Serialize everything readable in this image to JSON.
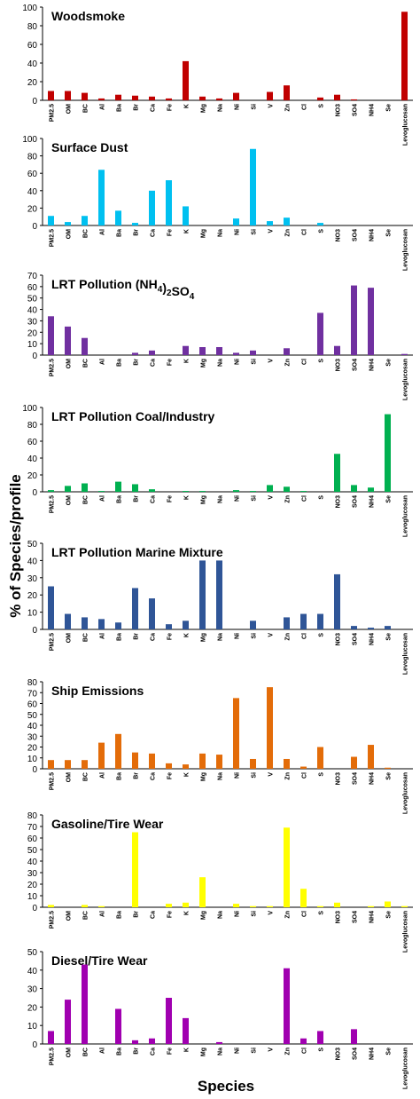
{
  "figure": {
    "ylabel": "% of Species/profile",
    "xlabel": "Species"
  },
  "chart_data": [
    {
      "type": "bar",
      "title": "Woodsmoke",
      "color": "#c00000",
      "categories": [
        "PM2.5",
        "OM",
        "BC",
        "Al",
        "Ba",
        "Br",
        "Ca",
        "Fe",
        "K",
        "Mg",
        "Na",
        "Ni",
        "Si",
        "V",
        "Zn",
        "Cl",
        "S",
        "NO3",
        "SO4",
        "NH4",
        "Se",
        "Levoglucosan"
      ],
      "values": [
        10,
        10,
        8,
        2,
        6,
        5,
        4,
        2,
        42,
        4,
        2,
        8,
        0,
        9,
        16,
        0,
        3,
        6,
        1,
        0,
        0,
        95
      ],
      "ylim": [
        0,
        100
      ],
      "yticks": [
        0,
        20,
        40,
        60,
        80,
        100
      ]
    },
    {
      "type": "bar",
      "title": "Surface Dust",
      "color": "#00c0f0",
      "categories": [
        "PM2.5",
        "OM",
        "BC",
        "Al",
        "Ba",
        "Br",
        "Ca",
        "Fe",
        "K",
        "Mg",
        "Na",
        "Ni",
        "Si",
        "V",
        "Zn",
        "Cl",
        "S",
        "NO3",
        "SO4",
        "NH4",
        "Se",
        "Levoglucosan"
      ],
      "values": [
        11,
        4,
        11,
        64,
        17,
        3,
        40,
        52,
        22,
        0,
        0,
        8,
        88,
        5,
        9,
        0,
        3,
        0,
        0,
        0,
        0,
        0
      ],
      "ylim": [
        0,
        100
      ],
      "yticks": [
        0,
        20,
        40,
        60,
        80,
        100
      ]
    },
    {
      "type": "bar",
      "title": "LRT Pollution (NH",
      "title_sub": "4",
      "title_mid": ")",
      "title_sub2": "2",
      "title_end": "SO",
      "title_sub3": "4",
      "color": "#7030a0",
      "categories": [
        "PM2.5",
        "OM",
        "BC",
        "Al",
        "Ba",
        "Br",
        "Ca",
        "Fe",
        "K",
        "Mg",
        "Na",
        "Ni",
        "Si",
        "V",
        "Zn",
        "Cl",
        "S",
        "NO3",
        "SO4",
        "NH4",
        "Se",
        "Levoglucosan"
      ],
      "values": [
        34,
        25,
        15,
        0,
        0,
        2,
        4,
        0,
        8,
        7,
        7,
        2,
        4,
        0,
        6,
        0,
        37,
        8,
        61,
        59,
        0,
        1
      ],
      "ylim": [
        0,
        70
      ],
      "yticks": [
        0,
        10,
        20,
        30,
        40,
        50,
        60,
        70
      ]
    },
    {
      "type": "bar",
      "title": "LRT Pollution Coal/Industry",
      "color": "#00b050",
      "categories": [
        "PM2.5",
        "OM",
        "BC",
        "Al",
        "Ba",
        "Br",
        "Ca",
        "Fe",
        "K",
        "Mg",
        "Na",
        "Ni",
        "Si",
        "V",
        "Zn",
        "Cl",
        "S",
        "NO3",
        "SO4",
        "NH4",
        "Se",
        "Levoglucosan"
      ],
      "values": [
        2,
        7,
        10,
        1,
        12,
        9,
        3,
        0,
        1,
        1,
        0,
        2,
        1,
        8,
        6,
        1,
        0,
        45,
        8,
        5,
        92,
        0
      ],
      "ylim": [
        0,
        100
      ],
      "yticks": [
        0,
        20,
        40,
        60,
        80,
        100
      ]
    },
    {
      "type": "bar",
      "title": "LRT Pollution Marine Mixture",
      "color": "#2f5597",
      "categories": [
        "PM2.5",
        "OM",
        "BC",
        "Al",
        "Ba",
        "Br",
        "Ca",
        "Fe",
        "K",
        "Mg",
        "Na",
        "Ni",
        "Si",
        "V",
        "Zn",
        "Cl",
        "S",
        "NO3",
        "SO4",
        "NH4",
        "Se",
        "Levoglucosan"
      ],
      "values": [
        25,
        9,
        7,
        6,
        4,
        24,
        18,
        3,
        5,
        40,
        40,
        0,
        5,
        0,
        7,
        9,
        9,
        32,
        2,
        1,
        2,
        0
      ],
      "ylim": [
        0,
        50
      ],
      "yticks": [
        0,
        10,
        20,
        30,
        40,
        50
      ]
    },
    {
      "type": "bar",
      "title": "Ship Emissions",
      "color": "#e36c09",
      "categories": [
        "PM2.5",
        "OM",
        "BC",
        "Al",
        "Ba",
        "Br",
        "Ca",
        "Fe",
        "K",
        "Mg",
        "Na",
        "Ni",
        "Si",
        "V",
        "Zn",
        "Cl",
        "S",
        "NO3",
        "SO4",
        "NH4",
        "Se",
        "Levoglucosan"
      ],
      "values": [
        8,
        8,
        8,
        24,
        32,
        15,
        14,
        5,
        4,
        14,
        13,
        65,
        9,
        75,
        9,
        2,
        20,
        0,
        11,
        22,
        1,
        0
      ],
      "ylim": [
        0,
        80
      ],
      "yticks": [
        0,
        10,
        20,
        30,
        40,
        50,
        60,
        70,
        80
      ]
    },
    {
      "type": "bar",
      "title": "Gasoline/Tire Wear",
      "color": "#ffff00",
      "categories": [
        "PM2.5",
        "OM",
        "BC",
        "Al",
        "Ba",
        "Br",
        "Ca",
        "Fe",
        "K",
        "Mg",
        "Na",
        "Ni",
        "Si",
        "V",
        "Zn",
        "Cl",
        "S",
        "NO3",
        "SO4",
        "NH4",
        "Se",
        "Levoglucosan"
      ],
      "values": [
        2,
        0,
        2,
        1,
        0,
        65,
        0,
        3,
        4,
        26,
        0,
        3,
        1,
        1,
        69,
        16,
        1,
        4,
        0,
        1,
        5,
        1
      ],
      "ylim": [
        0,
        80
      ],
      "yticks": [
        0,
        10,
        20,
        30,
        40,
        50,
        60,
        70,
        80
      ]
    },
    {
      "type": "bar",
      "title": "Diesel/Tire Wear",
      "color": "#a000b0",
      "categories": [
        "PM2.5",
        "OM",
        "BC",
        "Al",
        "Ba",
        "Br",
        "Ca",
        "Fe",
        "K",
        "Mg",
        "Na",
        "Ni",
        "Si",
        "V",
        "Zn",
        "Cl",
        "S",
        "NO3",
        "SO4",
        "NH4",
        "Se",
        "Levoglucosan"
      ],
      "values": [
        7,
        24,
        43,
        0,
        19,
        2,
        3,
        25,
        14,
        0,
        1,
        0,
        0,
        0,
        41,
        3,
        7,
        0,
        8,
        0,
        0,
        0
      ],
      "ylim": [
        0,
        50
      ],
      "yticks": [
        0,
        10,
        20,
        30,
        40,
        50
      ]
    }
  ]
}
